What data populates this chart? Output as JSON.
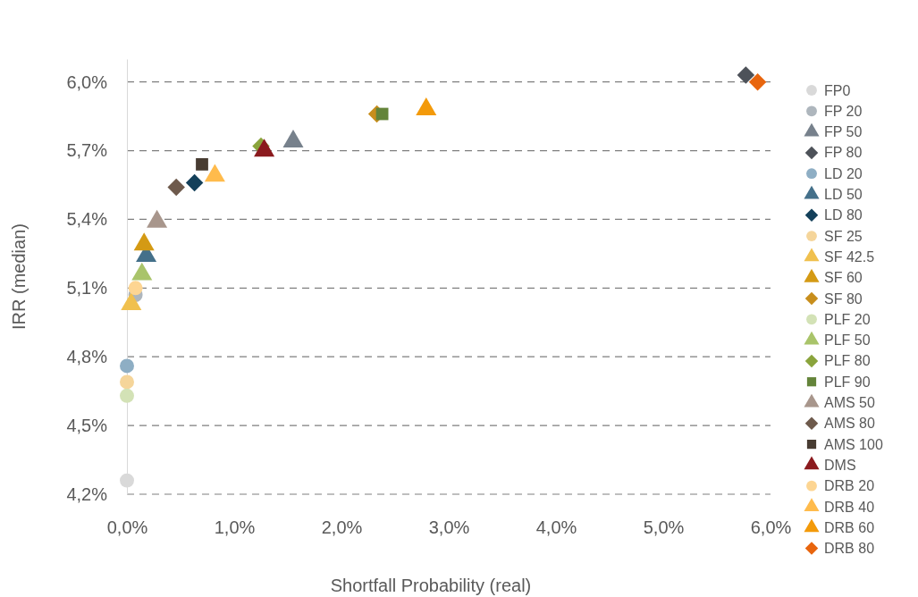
{
  "chart_data": {
    "type": "scatter",
    "xlabel": "Shortfall Probability (real)",
    "ylabel": "IRR (median)",
    "xlim": [
      0,
      6
    ],
    "xticks": [
      {
        "value": 0,
        "label": "0,0%"
      },
      {
        "value": 1,
        "label": "1,0%"
      },
      {
        "value": 2,
        "label": "2,0%"
      },
      {
        "value": 3,
        "label": "3,0%"
      },
      {
        "value": 4,
        "label": "4,0%"
      },
      {
        "value": 5,
        "label": "5,0%"
      },
      {
        "value": 6,
        "label": "6,0%"
      }
    ],
    "ylim": [
      4.2,
      6.1
    ],
    "yticks": [
      {
        "value": 4.2,
        "label": "4,2%"
      },
      {
        "value": 4.5,
        "label": "4,5%"
      },
      {
        "value": 4.8,
        "label": "4,8%"
      },
      {
        "value": 5.1,
        "label": "5,1%"
      },
      {
        "value": 5.4,
        "label": "5,4%"
      },
      {
        "value": 5.7,
        "label": "5,7%"
      },
      {
        "value": 6.0,
        "label": "6,0%"
      }
    ],
    "grid": "y",
    "legend": "right",
    "series": [
      {
        "name": "FP0",
        "color": "#d9d9d9",
        "marker": "circle",
        "x": [
          0.0
        ],
        "values": [
          4.26
        ]
      },
      {
        "name": "FP 20",
        "color": "#aeb6bd",
        "marker": "circle",
        "x": [
          0.08
        ],
        "values": [
          5.07
        ]
      },
      {
        "name": "FP 50",
        "color": "#77818c",
        "marker": "triangle",
        "x": [
          1.55
        ],
        "values": [
          5.74
        ]
      },
      {
        "name": "FP 80",
        "color": "#4d5259",
        "marker": "diamond",
        "x": [
          5.77
        ],
        "values": [
          6.03
        ]
      },
      {
        "name": "LD 20",
        "color": "#8eaec4",
        "marker": "circle",
        "x": [
          0.0
        ],
        "values": [
          4.76
        ]
      },
      {
        "name": "LD 50",
        "color": "#44708a",
        "marker": "triangle",
        "x": [
          0.18
        ],
        "values": [
          5.24
        ]
      },
      {
        "name": "LD 80",
        "color": "#14405a",
        "marker": "diamond",
        "x": [
          0.63
        ],
        "values": [
          5.56
        ]
      },
      {
        "name": "SF 25",
        "color": "#f5d59a",
        "marker": "circle",
        "x": [
          0.0
        ],
        "values": [
          4.69
        ]
      },
      {
        "name": "SF 42.5",
        "color": "#f0c04e",
        "marker": "triangle",
        "x": [
          0.04
        ],
        "values": [
          5.03
        ]
      },
      {
        "name": "SF 60",
        "color": "#d49a14",
        "marker": "triangle",
        "x": [
          0.16
        ],
        "values": [
          5.29
        ]
      },
      {
        "name": "SF 80",
        "color": "#c88e1c",
        "marker": "diamond",
        "x": [
          2.33
        ],
        "values": [
          5.86
        ]
      },
      {
        "name": "PLF 20",
        "color": "#d3e2b6",
        "marker": "circle",
        "x": [
          0.0
        ],
        "values": [
          4.63
        ]
      },
      {
        "name": "PLF 50",
        "color": "#a9c46a",
        "marker": "triangle",
        "x": [
          0.14
        ],
        "values": [
          5.16
        ]
      },
      {
        "name": "PLF 80",
        "color": "#8aa43c",
        "marker": "diamond",
        "x": [
          1.25
        ],
        "values": [
          5.72
        ]
      },
      {
        "name": "PLF 90",
        "color": "#64843a",
        "marker": "square",
        "x": [
          2.38
        ],
        "values": [
          5.86
        ]
      },
      {
        "name": "AMS 50",
        "color": "#a8968c",
        "marker": "triangle",
        "x": [
          0.28
        ],
        "values": [
          5.39
        ]
      },
      {
        "name": "AMS 80",
        "color": "#6e5a4c",
        "marker": "diamond",
        "x": [
          0.46
        ],
        "values": [
          5.54
        ]
      },
      {
        "name": "AMS 100",
        "color": "#483c32",
        "marker": "square",
        "x": [
          0.7
        ],
        "values": [
          5.64
        ]
      },
      {
        "name": "DMS",
        "color": "#8b1a1e",
        "marker": "triangle",
        "x": [
          1.28
        ],
        "values": [
          5.7
        ]
      },
      {
        "name": "DRB 20",
        "color": "#fdd592",
        "marker": "circle",
        "x": [
          0.08
        ],
        "values": [
          5.1
        ]
      },
      {
        "name": "DRB 40",
        "color": "#ffbb4c",
        "marker": "triangle",
        "x": [
          0.82
        ],
        "values": [
          5.59
        ]
      },
      {
        "name": "DRB 60",
        "color": "#f39a0a",
        "marker": "triangle",
        "x": [
          2.79
        ],
        "values": [
          5.88
        ]
      },
      {
        "name": "DRB 80",
        "color": "#e8650e",
        "marker": "diamond",
        "x": [
          5.88
        ],
        "values": [
          6.0
        ]
      }
    ]
  }
}
